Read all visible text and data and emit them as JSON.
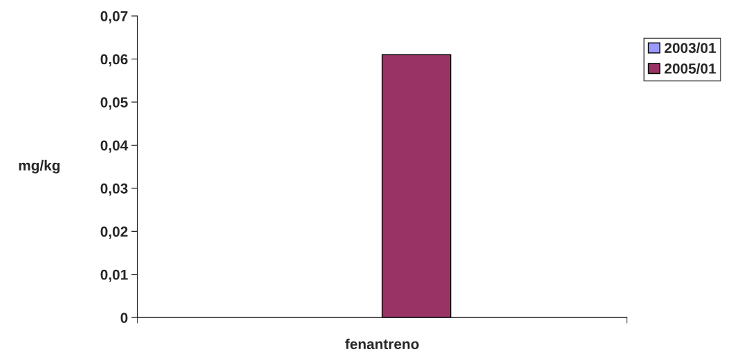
{
  "chart_data": {
    "type": "bar",
    "ylabel": "mg/kg",
    "categories": [
      "fenantreno"
    ],
    "series": [
      {
        "name": "2003/01",
        "color": "#9999ff",
        "values": [
          null
        ]
      },
      {
        "name": "2005/01",
        "color": "#993366",
        "values": [
          0.061
        ]
      }
    ],
    "ylim": [
      0,
      0.07
    ],
    "yticks": [
      0,
      {
        "value": 0.01,
        "label": "0,01"
      },
      {
        "value": 0.02,
        "label": "0,02"
      },
      {
        "value": 0.03,
        "label": "0,03"
      },
      {
        "value": 0.04,
        "label": "0,04"
      },
      {
        "value": 0.05,
        "label": "0,05"
      },
      {
        "value": 0.06,
        "label": "0,06"
      },
      {
        "value": 0.07,
        "label": "0,07"
      }
    ],
    "grid": false,
    "legend": "right"
  }
}
